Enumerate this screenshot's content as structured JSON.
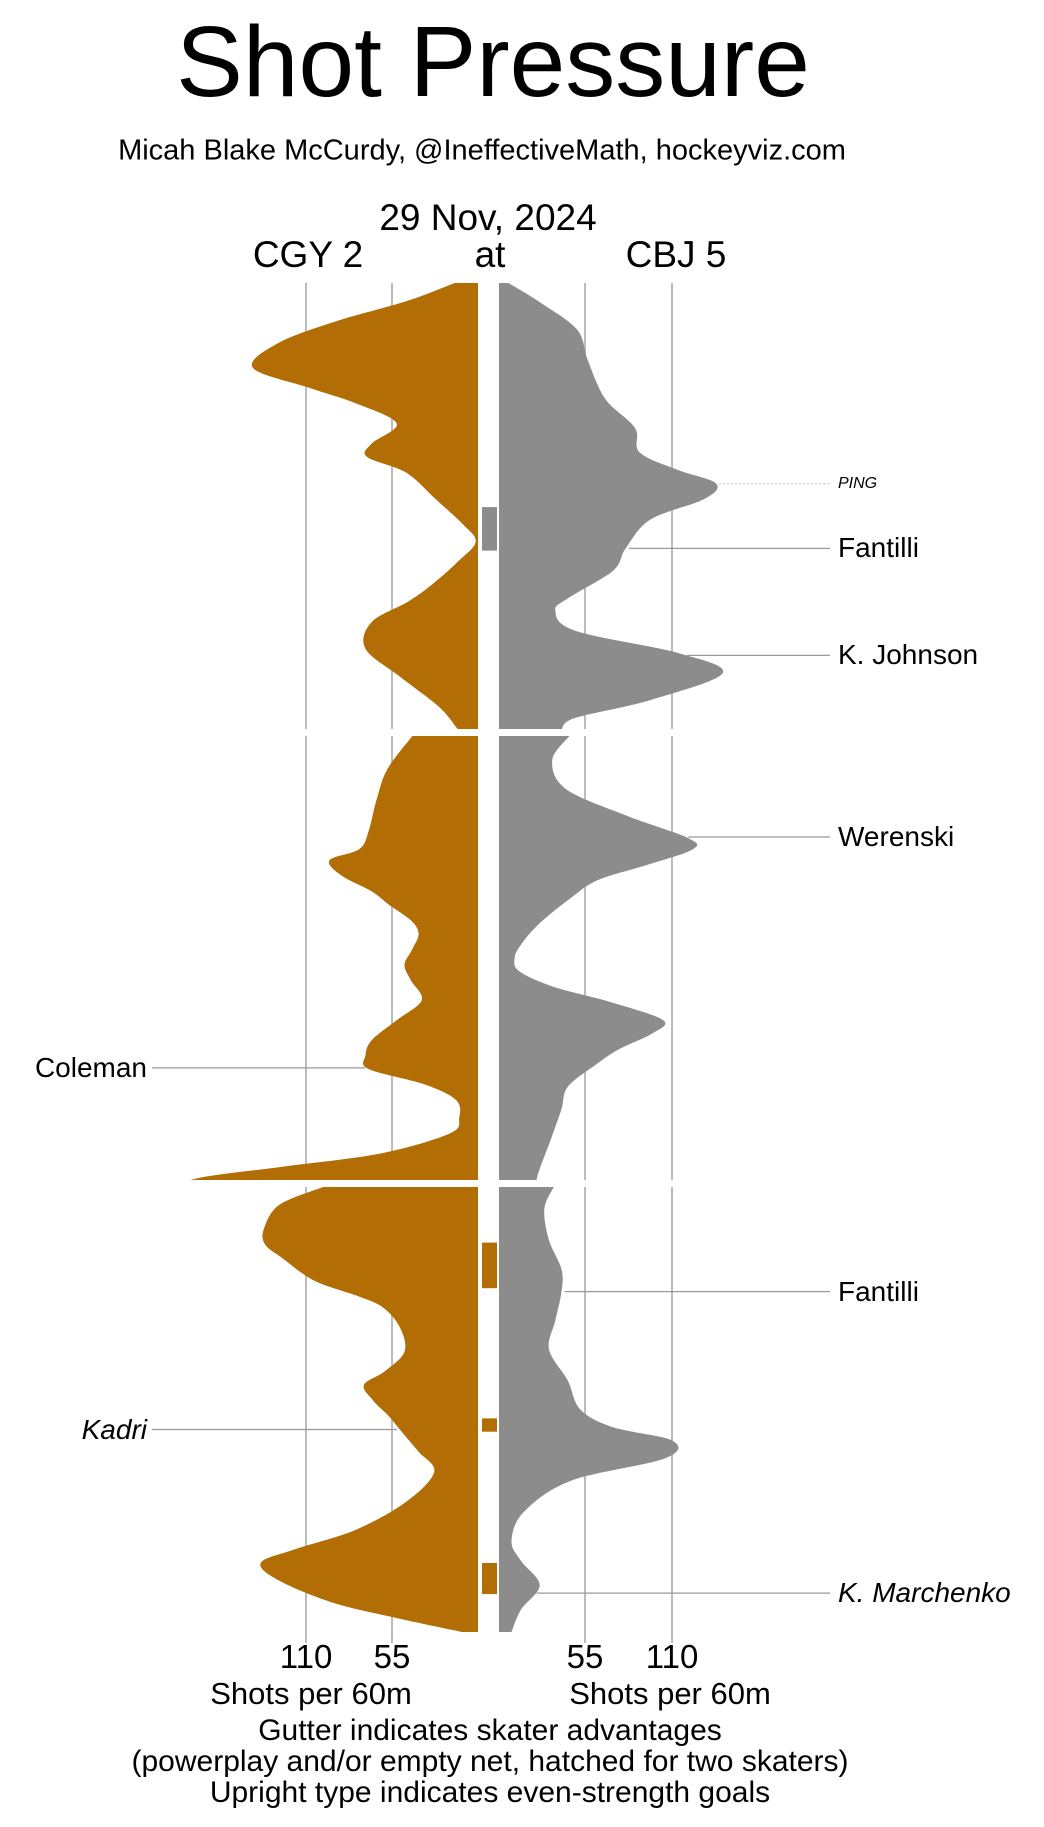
{
  "header": {
    "title": "Shot Pressure",
    "subtitle": "Micah Blake McCurdy, @IneffectiveMath, hockeyviz.com",
    "date": "29 Nov, 2024",
    "away_team": "CGY",
    "away_score": "2",
    "at_label": "at",
    "home_team": "CBJ",
    "home_score": "5"
  },
  "axis": {
    "ticks": [
      "110",
      "55",
      "55",
      "110"
    ],
    "left_title": "Shots per 60m",
    "right_title": "Shots per 60m"
  },
  "footer": {
    "line1": "Gutter indicates skater advantages",
    "line2": "(powerplay and/or empty net, hatched for two skaters)",
    "line3": "Upright type indicates even-strength goals"
  },
  "colors": {
    "away": "#B26E04",
    "home": "#8C8C8C",
    "gridline": "#B4B4B4",
    "leader_line": "#999999",
    "ping_line": "#BBBBBB",
    "text": "#000000",
    "background": "#FFFFFF"
  },
  "chart_data": {
    "type": "area",
    "title": "Shot Pressure",
    "matchup": "CGY 2 at CBJ 5, 29 Nov, 2024",
    "orientation": "vertical time axis; mirrored shot-rate densities; CGY on left (orange), CBJ on right (grey)",
    "value_unit": "shots per 60 minutes",
    "value_ticks": [
      110,
      55,
      55,
      110
    ],
    "periods": 3,
    "minutes_per_period": 20,
    "series": [
      {
        "name": "CGY",
        "side": "left",
        "color": "#B26E04",
        "periods": [
          [
            [
              0,
              15
            ],
            [
              0.8,
              45
            ],
            [
              1.7,
              90
            ],
            [
              2.7,
              128
            ],
            [
              3.8,
              144
            ],
            [
              4.7,
              108
            ],
            [
              5.4,
              78
            ],
            [
              6.3,
              52
            ],
            [
              7.2,
              68
            ],
            [
              7.8,
              71
            ],
            [
              8.5,
              46
            ],
            [
              9.7,
              27
            ],
            [
              10.8,
              10
            ],
            [
              11.6,
              1.5
            ],
            [
              12.5,
              13
            ],
            [
              13.5,
              29
            ],
            [
              14.3,
              45
            ],
            [
              15.2,
              68
            ],
            [
              16.4,
              72
            ],
            [
              17.7,
              49
            ],
            [
              19,
              25
            ],
            [
              20,
              13
            ]
          ],
          [
            [
              0,
              42
            ],
            [
              1.5,
              58
            ],
            [
              2.9,
              65
            ],
            [
              4.3,
              70
            ],
            [
              5.1,
              76
            ],
            [
              5.6,
              95
            ],
            [
              6.3,
              87
            ],
            [
              7,
              68
            ],
            [
              7.6,
              57
            ],
            [
              8.3,
              43
            ],
            [
              8.9,
              38
            ],
            [
              9.6,
              42
            ],
            [
              10.3,
              47
            ],
            [
              11,
              43
            ],
            [
              11.9,
              36
            ],
            [
              12.8,
              52
            ],
            [
              13.7,
              68
            ],
            [
              14.4,
              72
            ],
            [
              15,
              70
            ],
            [
              15.7,
              34
            ],
            [
              16.4,
              14
            ],
            [
              17.2,
              12
            ],
            [
              17.9,
              18
            ],
            [
              18.8,
              62
            ],
            [
              19.4,
              125
            ],
            [
              19.8,
              170
            ],
            [
              20,
              184
            ]
          ],
          [
            [
              0,
              99
            ],
            [
              0.8,
              127
            ],
            [
              1.9,
              137
            ],
            [
              2.6,
              136
            ],
            [
              3.2,
              125
            ],
            [
              4.2,
              105
            ],
            [
              4.9,
              77
            ],
            [
              5.4,
              61
            ],
            [
              6.3,
              50
            ],
            [
              7.4,
              47
            ],
            [
              8.3,
              60
            ],
            [
              8.9,
              73
            ],
            [
              9.6,
              67
            ],
            [
              10.3,
              57
            ],
            [
              10.9,
              50
            ],
            [
              11.9,
              38
            ],
            [
              12.8,
              28
            ],
            [
              14.1,
              45
            ],
            [
              15.4,
              78
            ],
            [
              16.3,
              118
            ],
            [
              16.9,
              139
            ],
            [
              17.7,
              127
            ],
            [
              18.7,
              92
            ],
            [
              19.4,
              50
            ],
            [
              20,
              10
            ]
          ]
        ]
      },
      {
        "name": "CBJ",
        "side": "right",
        "color": "#8C8C8C",
        "periods": [
          [
            [
              0,
              6
            ],
            [
              0.9,
              27
            ],
            [
              2.1,
              50
            ],
            [
              3.5,
              57
            ],
            [
              5.2,
              68
            ],
            [
              6.5,
              87
            ],
            [
              7.6,
              90
            ],
            [
              8.4,
              115
            ],
            [
              9,
              139
            ],
            [
              9.7,
              131
            ],
            [
              10.6,
              97
            ],
            [
              11.9,
              81
            ],
            [
              12.9,
              73
            ],
            [
              14.1,
              45
            ],
            [
              14.7,
              36
            ],
            [
              15.6,
              49
            ],
            [
              16.6,
              115
            ],
            [
              17.5,
              143
            ],
            [
              18.7,
              97
            ],
            [
              19.5,
              49
            ],
            [
              20,
              40
            ]
          ],
          [
            [
              0,
              45
            ],
            [
              1.1,
              34
            ],
            [
              2.4,
              43
            ],
            [
              3.6,
              82
            ],
            [
              4.6,
              121
            ],
            [
              5.1,
              124
            ],
            [
              5.8,
              95
            ],
            [
              6.5,
              63
            ],
            [
              7.4,
              44
            ],
            [
              8.5,
              25
            ],
            [
              9.4,
              14
            ],
            [
              10,
              10
            ],
            [
              10.6,
              13
            ],
            [
              11.3,
              35
            ],
            [
              12,
              72
            ],
            [
              12.8,
              105
            ],
            [
              13.4,
              98
            ],
            [
              14.1,
              77
            ],
            [
              14.8,
              62
            ],
            [
              15.8,
              44
            ],
            [
              16.8,
              40
            ],
            [
              18.2,
              33
            ],
            [
              19.5,
              26
            ],
            [
              20,
              24
            ]
          ],
          [
            [
              0,
              35
            ],
            [
              1,
              29
            ],
            [
              2.4,
              32
            ],
            [
              3.7,
              40
            ],
            [
              4.7,
              40
            ],
            [
              6,
              36
            ],
            [
              7.3,
              32
            ],
            [
              8.7,
              44
            ],
            [
              10,
              52
            ],
            [
              10.8,
              73
            ],
            [
              11.4,
              111
            ],
            [
              12.2,
              106
            ],
            [
              13.2,
              46
            ],
            [
              14.6,
              16
            ],
            [
              15.9,
              8
            ],
            [
              16.8,
              14
            ],
            [
              17.9,
              26
            ],
            [
              19,
              14
            ],
            [
              20,
              8
            ]
          ]
        ]
      }
    ],
    "events": [
      {
        "label": "PING",
        "team": "CBJ",
        "period": 1,
        "minute": 9,
        "style": "italic",
        "type": "post"
      },
      {
        "label": "Fantilli",
        "team": "CBJ",
        "period": 1,
        "minute": 11.9,
        "style": "upright",
        "type": "goal"
      },
      {
        "label": "K. Johnson",
        "team": "CBJ",
        "period": 1,
        "minute": 16.7,
        "style": "upright",
        "type": "goal"
      },
      {
        "label": "Werenski",
        "team": "CBJ",
        "period": 2,
        "minute": 4.55,
        "style": "upright",
        "type": "goal"
      },
      {
        "label": "Coleman",
        "team": "CGY",
        "period": 2,
        "minute": 14.95,
        "style": "upright",
        "type": "goal"
      },
      {
        "label": "Fantilli",
        "team": "CBJ",
        "period": 3,
        "minute": 4.7,
        "style": "upright",
        "type": "goal"
      },
      {
        "label": "Kadri",
        "team": "CGY",
        "period": 3,
        "minute": 10.9,
        "style": "italic",
        "type": "goal"
      },
      {
        "label": "K. Marchenko",
        "team": "CBJ",
        "period": 3,
        "minute": 18.25,
        "style": "italic",
        "type": "goal"
      }
    ],
    "advantages": [
      {
        "team": "CBJ",
        "period": 1,
        "start_minute": 10.05,
        "end_minute": 12
      },
      {
        "team": "CGY",
        "period": 3,
        "start_minute": 2.5,
        "end_minute": 4.55
      },
      {
        "team": "CGY",
        "period": 3,
        "start_minute": 10.4,
        "end_minute": 11
      },
      {
        "team": "CGY",
        "period": 3,
        "start_minute": 16.9,
        "end_minute": 18.3
      }
    ]
  }
}
